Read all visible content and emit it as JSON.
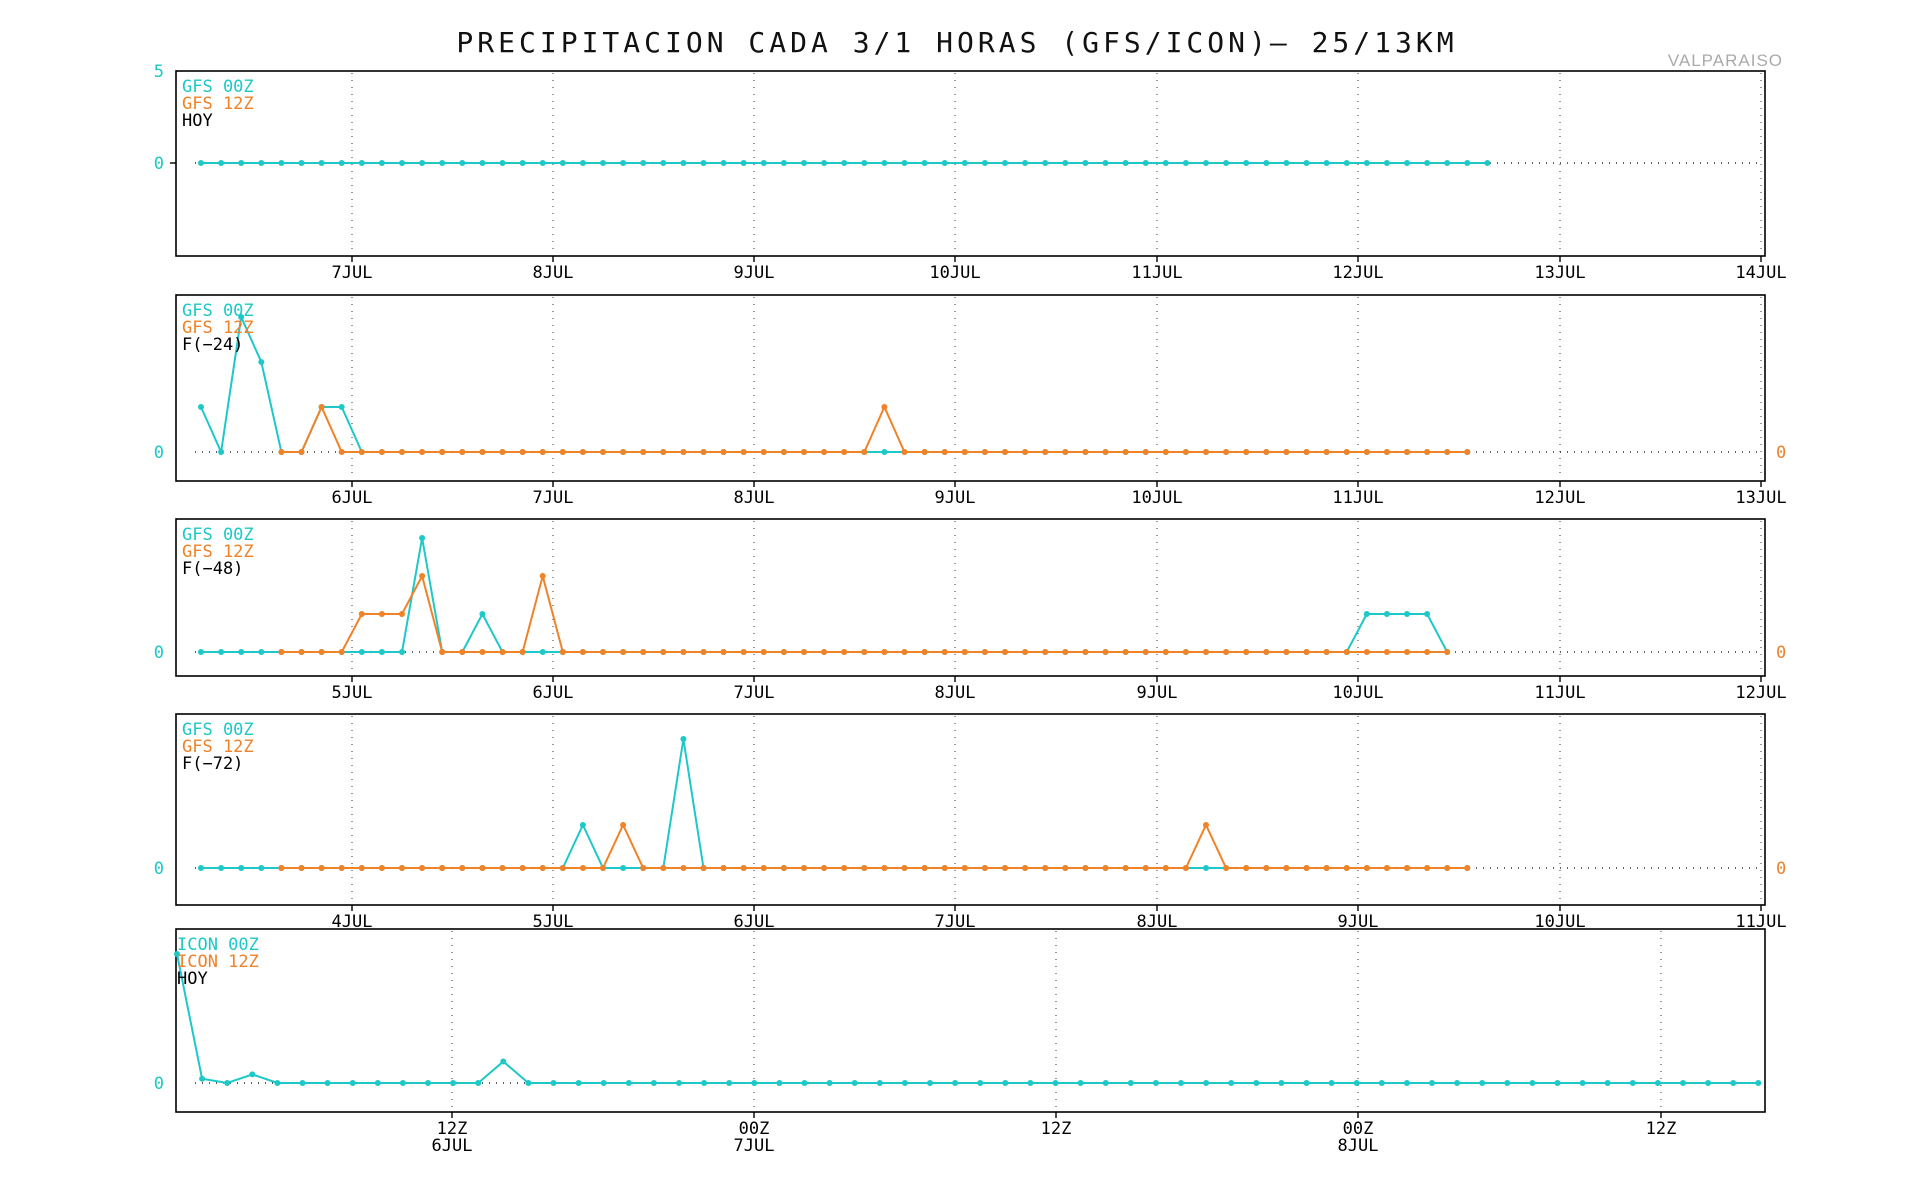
{
  "title": "PRECIPITACION CADA 3/1 HORAS (GFS/ICON)— 25/13KM",
  "location": "VALPARAISO",
  "colors": {
    "series_a": "#1ec8c8",
    "series_b": "#f08228",
    "legend_c": "#000000"
  },
  "chart_data": [
    {
      "type": "line",
      "legend": [
        "GFS 00Z",
        "GFS 12Z",
        "HOY"
      ],
      "x_tick_labels": [
        "7JUL",
        "8JUL",
        "9JUL",
        "10JUL",
        "11JUL",
        "12JUL",
        "13JUL",
        "14JUL"
      ],
      "ylim": [
        -5,
        5
      ],
      "y_tick_labels_left": [
        "5",
        "0"
      ],
      "y_tick_labels_right": [],
      "series": [
        {
          "name": "GFS 00Z",
          "values": [
            0,
            0,
            0,
            0,
            0,
            0,
            0,
            0,
            0,
            0,
            0,
            0,
            0,
            0,
            0,
            0,
            0,
            0,
            0,
            0,
            0,
            0,
            0,
            0,
            0,
            0,
            0,
            0,
            0,
            0,
            0,
            0,
            0,
            0,
            0,
            0,
            0,
            0,
            0,
            0,
            0,
            0,
            0,
            0,
            0,
            0,
            0,
            0,
            0,
            0,
            0,
            0,
            0,
            0,
            0,
            0,
            0,
            0,
            0,
            0,
            0,
            0,
            0,
            0,
            0
          ]
        }
      ]
    },
    {
      "type": "line",
      "legend": [
        "GFS 00Z",
        "GFS 12Z",
        "F(−24)"
      ],
      "x_tick_labels": [
        "6JUL",
        "7JUL",
        "8JUL",
        "9JUL",
        "10JUL",
        "11JUL",
        "12JUL",
        "13JUL"
      ],
      "ylim": [
        -0.6,
        3.5
      ],
      "y_tick_labels_left": [
        "0"
      ],
      "y_tick_labels_right": [
        "0"
      ],
      "series": [
        {
          "name": "GFS 00Z",
          "values": [
            1,
            0,
            3,
            2,
            0,
            0,
            1,
            1,
            0,
            0,
            0,
            0,
            0,
            0,
            0,
            0,
            0,
            0,
            0,
            0,
            0,
            0,
            0,
            0,
            0,
            0,
            0,
            0,
            0,
            0,
            0,
            0,
            0,
            0,
            0,
            0,
            0,
            0,
            0,
            0,
            0,
            0,
            0,
            0,
            0,
            0,
            0,
            0,
            0,
            0,
            0,
            0,
            0,
            0,
            0,
            0,
            0,
            0,
            0,
            0,
            0,
            0,
            0,
            0
          ]
        },
        {
          "name": "GFS 12Z",
          "values": [
            null,
            null,
            null,
            null,
            0,
            0,
            1,
            0,
            0,
            0,
            0,
            0,
            0,
            0,
            0,
            0,
            0,
            0,
            0,
            0,
            0,
            0,
            0,
            0,
            0,
            0,
            0,
            0,
            0,
            0,
            0,
            0,
            0,
            0,
            1,
            0,
            0,
            0,
            0,
            0,
            0,
            0,
            0,
            0,
            0,
            0,
            0,
            0,
            0,
            0,
            0,
            0,
            0,
            0,
            0,
            0,
            0,
            0,
            0,
            0,
            0,
            0,
            0,
            0
          ]
        }
      ]
    },
    {
      "type": "line",
      "legend": [
        "GFS 00Z",
        "GFS 12Z",
        "F(−48)"
      ],
      "x_tick_labels": [
        "5JUL",
        "6JUL",
        "7JUL",
        "8JUL",
        "9JUL",
        "10JUL",
        "11JUL",
        "12JUL"
      ],
      "ylim": [
        -0.6,
        3.5
      ],
      "y_tick_labels_left": [
        "0"
      ],
      "y_tick_labels_right": [
        "0"
      ],
      "series": [
        {
          "name": "GFS 00Z",
          "values": [
            0,
            0,
            0,
            0,
            0,
            0,
            0,
            0,
            0,
            0,
            0,
            3,
            0,
            0,
            1,
            0,
            0,
            0,
            0,
            0,
            0,
            0,
            0,
            0,
            0,
            0,
            0,
            0,
            0,
            0,
            0,
            0,
            0,
            0,
            0,
            0,
            0,
            0,
            0,
            0,
            0,
            0,
            0,
            0,
            0,
            0,
            0,
            0,
            0,
            0,
            0,
            0,
            0,
            0,
            0,
            0,
            0,
            0,
            1,
            1,
            1,
            1,
            0
          ]
        },
        {
          "name": "GFS 12Z",
          "values": [
            null,
            null,
            null,
            null,
            0,
            0,
            0,
            0,
            1,
            1,
            1,
            2,
            0,
            0,
            0,
            0,
            0,
            2,
            0,
            0,
            0,
            0,
            0,
            0,
            0,
            0,
            0,
            0,
            0,
            0,
            0,
            0,
            0,
            0,
            0,
            0,
            0,
            0,
            0,
            0,
            0,
            0,
            0,
            0,
            0,
            0,
            0,
            0,
            0,
            0,
            0,
            0,
            0,
            0,
            0,
            0,
            0,
            0,
            0,
            0,
            0,
            0,
            0
          ]
        }
      ]
    },
    {
      "type": "line",
      "legend": [
        "GFS 00Z",
        "GFS 12Z",
        "F(−72)"
      ],
      "x_tick_labels": [
        "4JUL",
        "5JUL",
        "6JUL",
        "7JUL",
        "8JUL",
        "9JUL",
        "10JUL",
        "11JUL"
      ],
      "ylim": [
        -0.6,
        3.5
      ],
      "y_tick_labels_left": [
        "0"
      ],
      "y_tick_labels_right": [
        "0"
      ],
      "series": [
        {
          "name": "GFS 00Z",
          "values": [
            0,
            0,
            0,
            0,
            0,
            0,
            0,
            0,
            0,
            0,
            0,
            0,
            0,
            0,
            0,
            0,
            0,
            0,
            0,
            1,
            0,
            0,
            0,
            0,
            3,
            0,
            0,
            0,
            0,
            0,
            0,
            0,
            0,
            0,
            0,
            0,
            0,
            0,
            0,
            0,
            0,
            0,
            0,
            0,
            0,
            0,
            0,
            0,
            0,
            0,
            0,
            0,
            0,
            0,
            0,
            0,
            0,
            0,
            0,
            0,
            0,
            0,
            0,
            0
          ]
        },
        {
          "name": "GFS 12Z",
          "values": [
            null,
            null,
            null,
            null,
            0,
            0,
            0,
            0,
            0,
            0,
            0,
            0,
            0,
            0,
            0,
            0,
            0,
            0,
            0,
            0,
            0,
            1,
            0,
            0,
            0,
            0,
            0,
            0,
            0,
            0,
            0,
            0,
            0,
            0,
            0,
            0,
            0,
            0,
            0,
            0,
            0,
            0,
            0,
            0,
            0,
            0,
            0,
            0,
            0,
            0,
            1,
            0,
            0,
            0,
            0,
            0,
            0,
            0,
            0,
            0,
            0,
            0,
            0,
            0
          ]
        }
      ]
    },
    {
      "type": "line",
      "legend": [
        "ICON 00Z",
        "ICON 12Z",
        "HOY"
      ],
      "x_tick_labels": [
        {
          "top": "12Z",
          "bottom": "6JUL"
        },
        {
          "top": "00Z",
          "bottom": "7JUL"
        },
        {
          "top": "12Z",
          "bottom": ""
        },
        {
          "top": "00Z",
          "bottom": "8JUL"
        },
        {
          "top": "12Z",
          "bottom": ""
        }
      ],
      "ylim": [
        -0.6,
        3.5
      ],
      "y_tick_labels_left": [
        "0"
      ],
      "y_tick_labels_right": [],
      "series": [
        {
          "name": "ICON 00Z",
          "values": [
            3,
            0.1,
            0,
            0.2,
            0,
            0,
            0,
            0,
            0,
            0,
            0,
            0,
            0,
            0.5,
            0,
            0,
            0,
            0,
            0,
            0,
            0,
            0,
            0,
            0,
            0,
            0,
            0,
            0,
            0,
            0,
            0,
            0,
            0,
            0,
            0,
            0,
            0,
            0,
            0,
            0,
            0,
            0,
            0,
            0,
            0,
            0,
            0,
            0,
            0,
            0,
            0,
            0,
            0,
            0,
            0,
            0,
            0,
            0,
            0,
            0,
            0,
            0,
            0,
            0,
            0
          ]
        }
      ]
    }
  ]
}
